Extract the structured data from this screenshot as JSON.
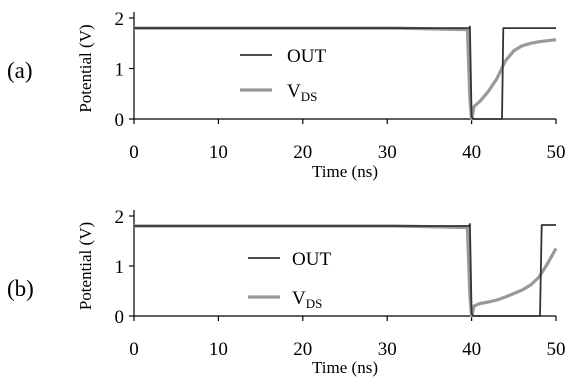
{
  "chart_data": [
    {
      "panel_label": "(a)",
      "type": "line",
      "xlabel": "Time (ns)",
      "ylabel": "Potential (V)",
      "xlim": [
        0,
        50
      ],
      "ylim": [
        0,
        2
      ],
      "xticks": [
        "0",
        "10",
        "20",
        "30",
        "40",
        "50"
      ],
      "yticks": [
        "0",
        "1",
        "2"
      ],
      "grid": false,
      "legend_position": "center",
      "series": [
        {
          "name": "OUT",
          "color": "#333333",
          "x": [
            0,
            39.7,
            39.8,
            40.0,
            40.2,
            43.6,
            43.75,
            50
          ],
          "y": [
            1.8,
            1.8,
            1.83,
            0.05,
            0.0,
            0.0,
            1.8,
            1.8
          ]
        },
        {
          "name": "V",
          "name_subscript": "DS",
          "color": "#999999",
          "x": [
            0,
            31,
            39.5,
            39.8,
            40.0,
            40.3,
            41,
            42,
            43,
            44,
            45,
            46,
            47,
            48,
            49,
            50
          ],
          "y": [
            1.8,
            1.8,
            1.77,
            0.4,
            0.0,
            0.25,
            0.35,
            0.55,
            0.8,
            1.15,
            1.35,
            1.45,
            1.5,
            1.53,
            1.55,
            1.57
          ]
        }
      ]
    },
    {
      "panel_label": "(b)",
      "type": "line",
      "xlabel": "Time (ns)",
      "ylabel": "Potential (V)",
      "xlim": [
        0,
        50
      ],
      "ylim": [
        0,
        2
      ],
      "xticks": [
        "0",
        "10",
        "20",
        "30",
        "40",
        "50"
      ],
      "yticks": [
        "0",
        "1",
        "2"
      ],
      "grid": false,
      "legend_position": "center",
      "series": [
        {
          "name": "OUT",
          "color": "#333333",
          "x": [
            0,
            39.7,
            39.8,
            40.0,
            40.2,
            48.1,
            48.3,
            50
          ],
          "y": [
            1.8,
            1.8,
            1.84,
            0.05,
            0.0,
            0.0,
            1.82,
            1.82
          ]
        },
        {
          "name": "V",
          "name_subscript": "DS",
          "color": "#999999",
          "x": [
            0,
            31,
            39.5,
            39.8,
            40.0,
            40.3,
            41,
            42,
            43,
            44,
            45,
            46,
            47,
            48,
            49,
            50
          ],
          "y": [
            1.8,
            1.8,
            1.77,
            0.4,
            0.0,
            0.2,
            0.25,
            0.28,
            0.32,
            0.38,
            0.45,
            0.52,
            0.62,
            0.78,
            1.05,
            1.35
          ]
        }
      ]
    }
  ]
}
